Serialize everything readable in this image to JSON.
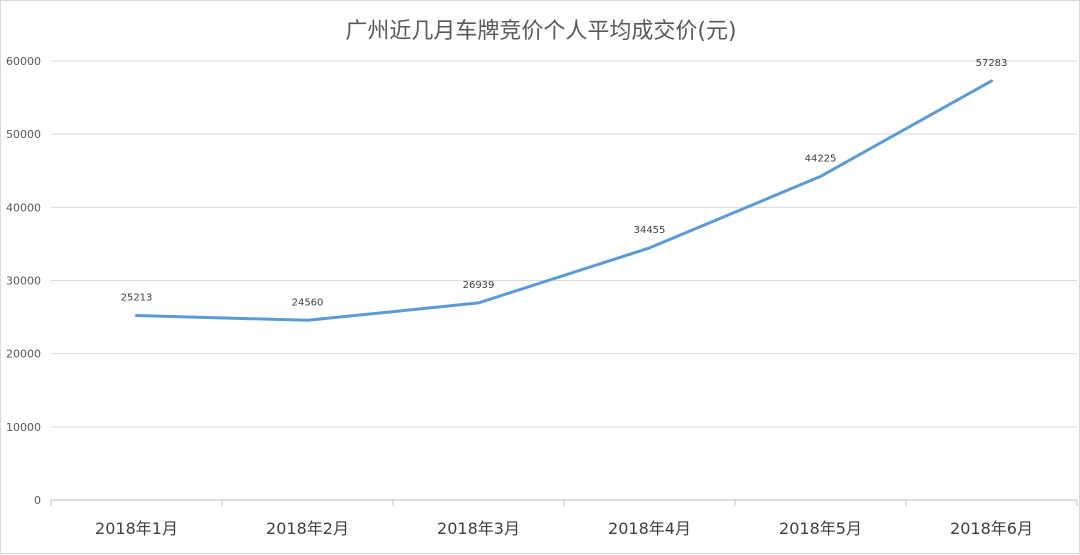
{
  "chart_data": {
    "type": "line",
    "title": "广州近几月车牌竞价个人平均成交价(元)",
    "xlabel": "",
    "ylabel": "",
    "categories": [
      "2018年1月",
      "2018年2月",
      "2018年3月",
      "2018年4月",
      "2018年5月",
      "2018年6月"
    ],
    "series": [
      {
        "values": [
          25213,
          24560,
          26939,
          34455,
          44225,
          57283
        ],
        "color": "#5b9bd5"
      }
    ],
    "ylim": [
      0,
      60000
    ],
    "yticks": [
      0,
      10000,
      20000,
      30000,
      40000,
      50000,
      60000
    ],
    "grid": true,
    "legend": "none",
    "data_labels": true
  }
}
